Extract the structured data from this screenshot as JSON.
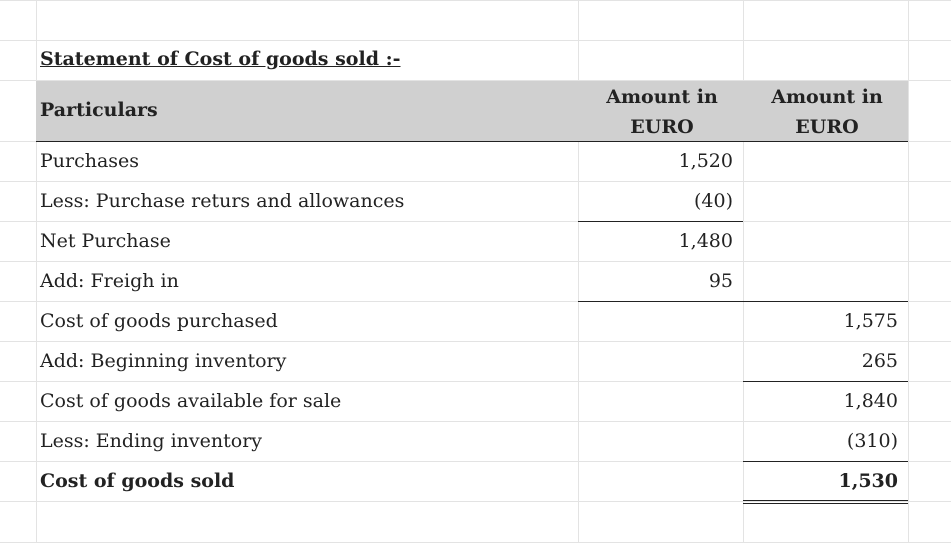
{
  "statement": {
    "title": "Statement of Cost of goods sold :-",
    "header": {
      "particulars": "Particulars",
      "col1_line1": "Amount in",
      "col1_line2": "EURO",
      "col2_line1": "Amount in",
      "col2_line2": "EURO"
    },
    "rows": [
      {
        "label": "Purchases",
        "col1": "1,520",
        "col2": ""
      },
      {
        "label": "Less: Purchase returs and allowances",
        "col1": "(40)",
        "col2": ""
      },
      {
        "label": "Net Purchase",
        "col1": "1,480",
        "col2": ""
      },
      {
        "label": "Add: Freigh in",
        "col1": "95",
        "col2": ""
      },
      {
        "label": "Cost of goods purchased",
        "col1": "",
        "col2": "1,575"
      },
      {
        "label": "Add: Beginning inventory",
        "col1": "",
        "col2": "265"
      },
      {
        "label": "Cost of goods available for sale",
        "col1": "",
        "col2": "1,840"
      },
      {
        "label": "Less: Ending inventory",
        "col1": "",
        "col2": "(310)"
      },
      {
        "label": "Cost of goods sold",
        "col1": "",
        "col2": "1,530"
      }
    ]
  }
}
